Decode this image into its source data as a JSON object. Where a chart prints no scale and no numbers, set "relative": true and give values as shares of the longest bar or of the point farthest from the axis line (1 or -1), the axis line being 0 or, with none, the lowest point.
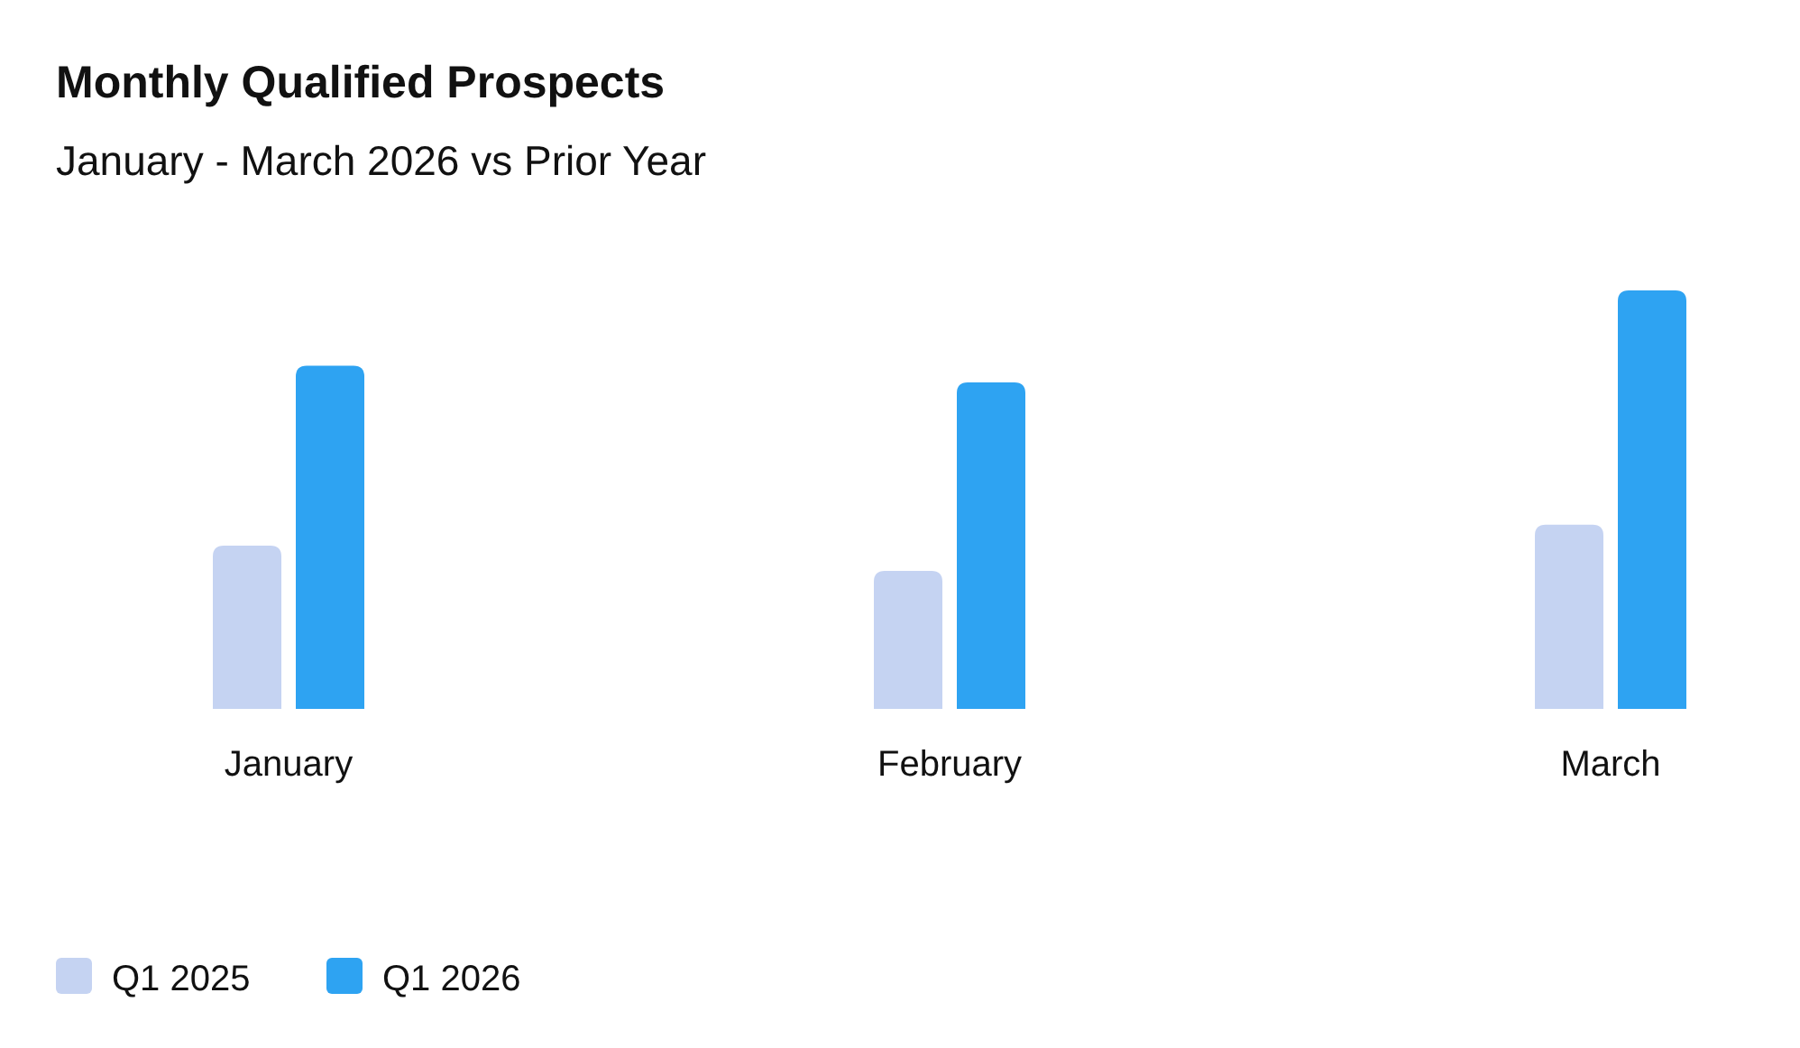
{
  "chart_data": {
    "type": "bar",
    "title": "Monthly Qualified Prospects",
    "subtitle": "January - March 2026 vs Prior Year",
    "relative": true,
    "categories": [
      "January",
      "February",
      "March"
    ],
    "series": [
      {
        "name": "Q1 2025",
        "color": "#c5d3f2",
        "values": [
          0.39,
          0.33,
          0.44
        ]
      },
      {
        "name": "Q1 2026",
        "color": "#2ea3f2",
        "values": [
          0.82,
          0.78,
          1
        ]
      }
    ],
    "legend": "bottom left"
  }
}
